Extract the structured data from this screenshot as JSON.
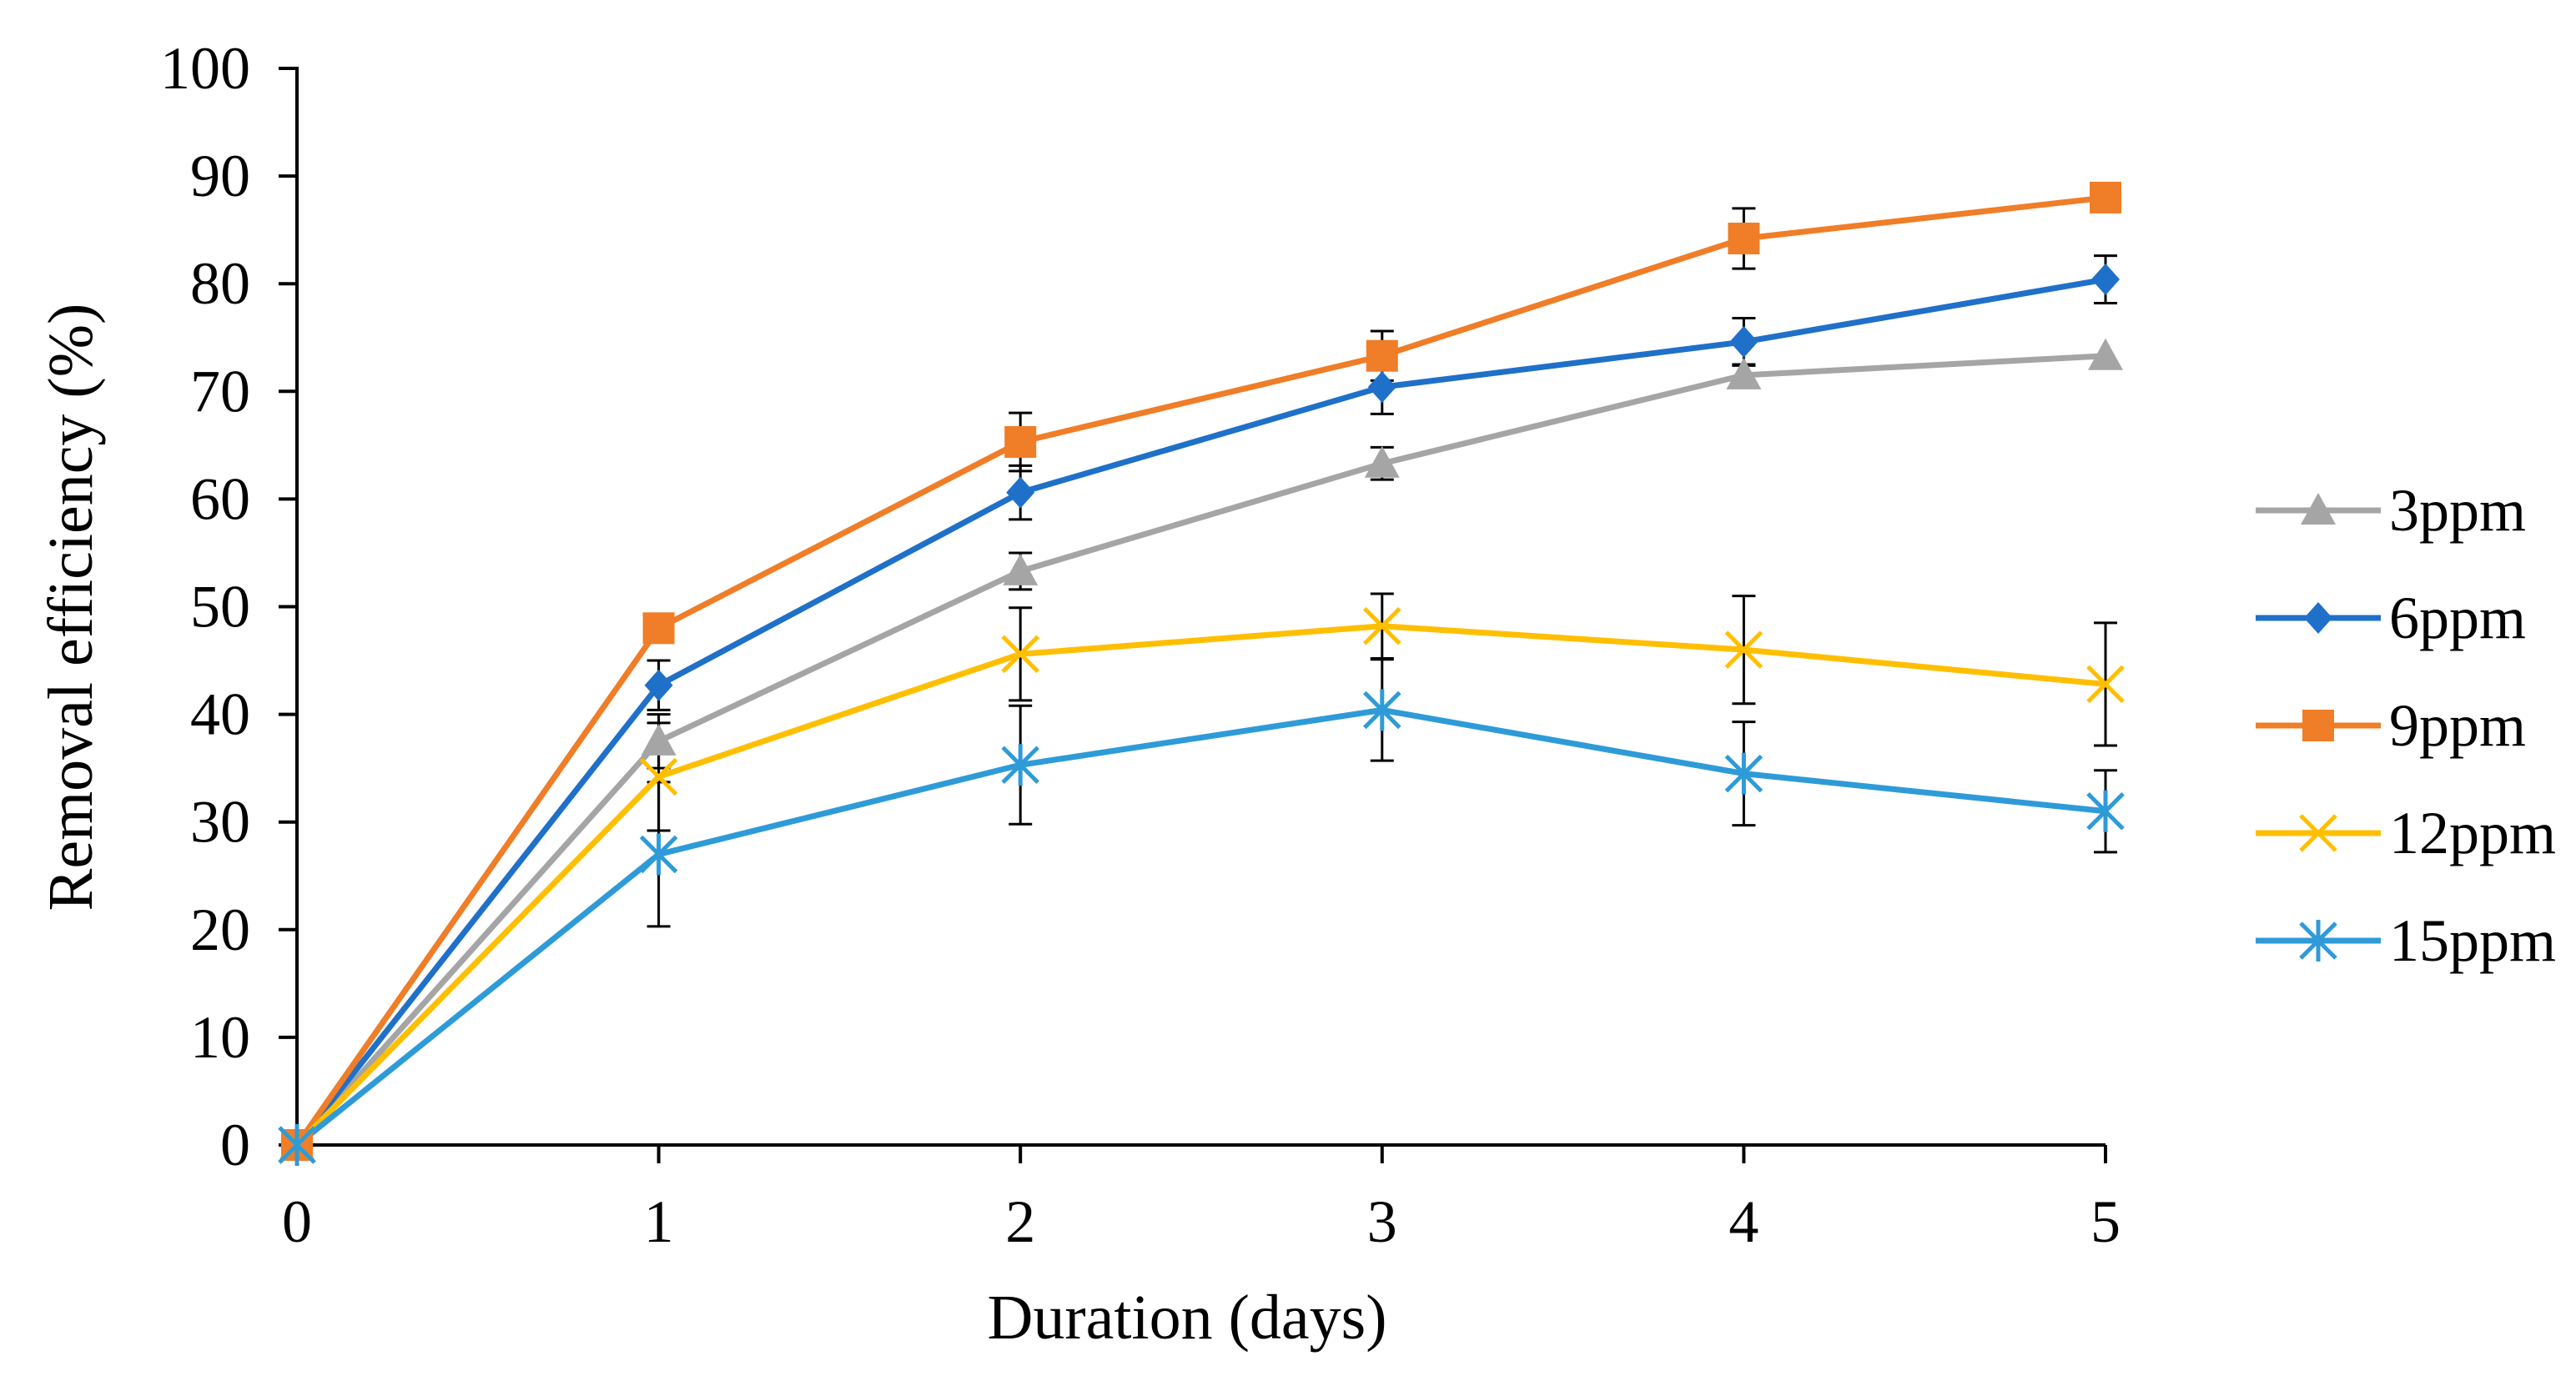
{
  "chart_data": {
    "type": "line",
    "title": "",
    "xlabel": "Duration (days)",
    "ylabel": "Removal efficiency (%)",
    "xlim": [
      0,
      5
    ],
    "ylim": [
      0,
      100
    ],
    "x_ticks": [
      0,
      1,
      2,
      3,
      4,
      5
    ],
    "y_ticks": [
      0,
      10,
      20,
      30,
      40,
      50,
      60,
      70,
      80,
      90,
      100
    ],
    "grid": false,
    "legend_position": "right",
    "x": [
      0,
      1,
      2,
      3,
      4,
      5
    ],
    "series": [
      {
        "name": "3ppm",
        "color": "#A5A5A5",
        "marker": "triangle",
        "values": [
          0,
          37.5,
          53.3,
          63.3,
          71.5,
          73.3
        ],
        "errors": [
          0,
          2.5,
          1.7,
          1.5,
          1.0,
          0.0
        ]
      },
      {
        "name": "6ppm",
        "color": "#1F70C8",
        "marker": "diamond",
        "values": [
          0,
          42.7,
          60.6,
          70.4,
          74.6,
          80.4
        ],
        "errors": [
          0,
          2.3,
          2.5,
          2.5,
          2.2,
          2.2
        ]
      },
      {
        "name": "9ppm",
        "color": "#F07D27",
        "marker": "square",
        "values": [
          0,
          48.0,
          65.3,
          73.3,
          84.2,
          88.0
        ],
        "errors": [
          0,
          0.7,
          2.7,
          2.3,
          2.8,
          0.0
        ]
      },
      {
        "name": "12ppm",
        "color": "#FFBF00",
        "marker": "x",
        "values": [
          0,
          34.2,
          45.6,
          48.2,
          46.0,
          42.8
        ],
        "errors": [
          0,
          5.0,
          4.3,
          3.0,
          5.0,
          5.7
        ]
      },
      {
        "name": "15ppm",
        "color": "#2E9BD8",
        "marker": "asterisk",
        "values": [
          0,
          27.0,
          35.3,
          40.4,
          34.5,
          31.0
        ],
        "errors": [
          0,
          6.7,
          5.5,
          4.7,
          4.8,
          3.8
        ]
      }
    ]
  }
}
